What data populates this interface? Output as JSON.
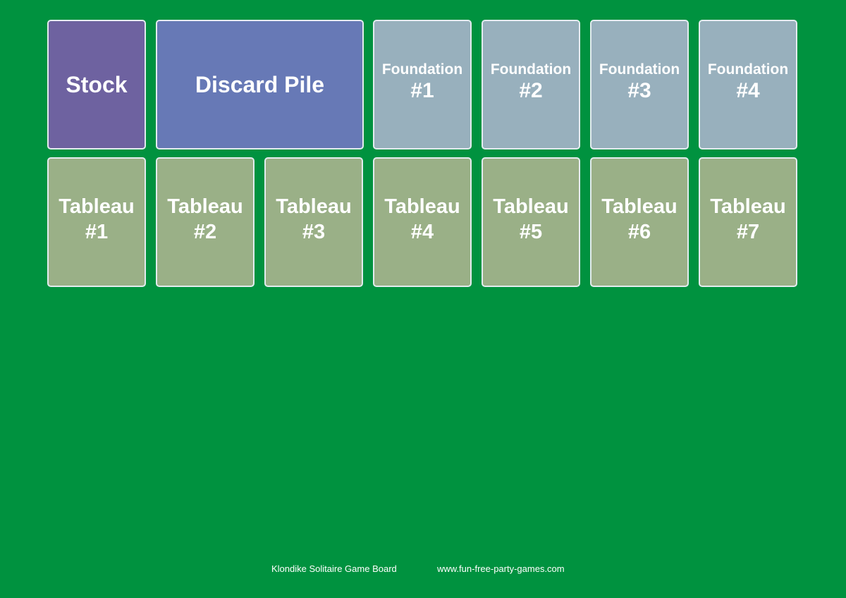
{
  "board": {
    "stock": "Stock",
    "discard": "Discard Pile",
    "foundations": [
      {
        "label": "Foundation",
        "number": "#1"
      },
      {
        "label": "Foundation",
        "number": "#2"
      },
      {
        "label": "Foundation",
        "number": "#3"
      },
      {
        "label": "Foundation",
        "number": "#4"
      }
    ],
    "tableaus": [
      {
        "label": "Tableau",
        "number": "#1"
      },
      {
        "label": "Tableau",
        "number": "#2"
      },
      {
        "label": "Tableau",
        "number": "#3"
      },
      {
        "label": "Tableau",
        "number": "#4"
      },
      {
        "label": "Tableau",
        "number": "#5"
      },
      {
        "label": "Tableau",
        "number": "#6"
      },
      {
        "label": "Tableau",
        "number": "#7"
      }
    ]
  },
  "footer": {
    "caption": "Klondike Solitaire Game Board",
    "website": "www.fun-free-party-games.com"
  },
  "colors": {
    "table_felt": "#00923f",
    "stock": "#6e62a0",
    "discard": "#6779b6",
    "foundation": "#98b0bd",
    "tableau": "#9ab087",
    "slot_border": "#e4ecef"
  }
}
